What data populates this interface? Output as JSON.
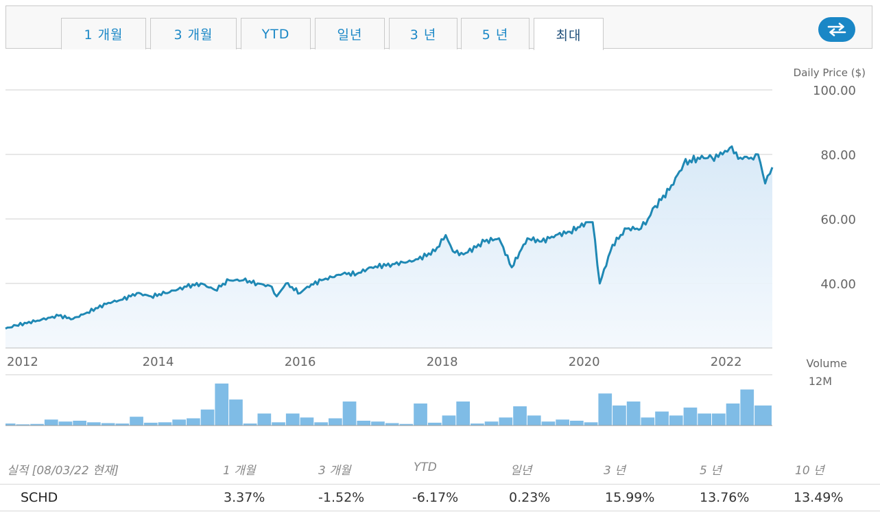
{
  "tabs": [
    {
      "label": "1 개월"
    },
    {
      "label": "3 개월"
    },
    {
      "label": "YTD"
    },
    {
      "label": "일년"
    },
    {
      "label": "3 년"
    },
    {
      "label": "5 년"
    },
    {
      "label": "최대",
      "active": true
    }
  ],
  "swap_icon": "swap-arrows-icon",
  "colors": {
    "accent": "#1a87c6",
    "line": "#1f88b4",
    "volume": "#7fbce6",
    "fill": "#dcebf8"
  },
  "chart_data": {
    "type": "line",
    "ylabel": "Daily Price ($)",
    "yticks": [
      "100.00",
      "80.00",
      "60.00",
      "40.00"
    ],
    "ylim": [
      20,
      100
    ],
    "xticks": [
      "2012",
      "2014",
      "2016",
      "2018",
      "2020",
      "2022"
    ],
    "xlim": [
      2011.85,
      2022.65
    ],
    "grid": true,
    "series": [
      {
        "x": [
          2011.85,
          2012.0,
          2012.3,
          2012.6,
          2012.8,
          2013.0,
          2013.3,
          2013.5,
          2013.7,
          2013.9,
          2014.1,
          2014.4,
          2014.6,
          2014.8,
          2015.0,
          2015.2,
          2015.4,
          2015.6,
          2015.67,
          2015.8,
          2016.0,
          2016.1,
          2016.3,
          2016.6,
          2016.8,
          2017.0,
          2017.3,
          2017.6,
          2017.9,
          2018.05,
          2018.15,
          2018.3,
          2018.6,
          2018.8,
          2018.98,
          2019.2,
          2019.4,
          2019.6,
          2019.8,
          2020.05,
          2020.12,
          2020.22,
          2020.4,
          2020.6,
          2020.8,
          2020.9,
          2021.0,
          2021.2,
          2021.4,
          2021.6,
          2021.8,
          2021.95,
          2022.05,
          2022.2,
          2022.35,
          2022.45,
          2022.55,
          2022.65
        ],
        "y": [
          26,
          27,
          28.5,
          30,
          29,
          31,
          34,
          35,
          37,
          36,
          37,
          39,
          40,
          38,
          41,
          41,
          40,
          39,
          36,
          40,
          37,
          39,
          41,
          43,
          43,
          45,
          46,
          47,
          50,
          55,
          50,
          49,
          53,
          54,
          45,
          54,
          53,
          55,
          56,
          59,
          59,
          40,
          52,
          57,
          57,
          60,
          64,
          69,
          77,
          79,
          79,
          80,
          82,
          79,
          79,
          80,
          71,
          76
        ]
      }
    ],
    "volume": {
      "label": "Volume",
      "max_label": "12M",
      "max": 12,
      "x": [
        2011.85,
        2012.0,
        2012.2,
        2012.4,
        2012.6,
        2012.8,
        2013.0,
        2013.2,
        2013.4,
        2013.6,
        2013.8,
        2014.0,
        2014.2,
        2014.4,
        2014.6,
        2014.8,
        2015.0,
        2015.2,
        2015.4,
        2015.6,
        2015.8,
        2016.0,
        2016.2,
        2016.4,
        2016.6,
        2016.8,
        2017.0,
        2017.2,
        2017.4,
        2017.6,
        2017.8,
        2018.0,
        2018.2,
        2018.4,
        2018.6,
        2018.8,
        2019.0,
        2019.2,
        2019.4,
        2019.6,
        2019.8,
        2020.0,
        2020.2,
        2020.4,
        2020.6,
        2020.8,
        2021.0,
        2021.2,
        2021.4,
        2021.6,
        2021.8,
        2022.0,
        2022.2,
        2022.4
      ],
      "values": [
        0.5,
        0.3,
        0.4,
        1.5,
        1.0,
        1.2,
        0.8,
        0.6,
        0.5,
        2.2,
        0.7,
        0.8,
        1.5,
        1.8,
        4.0,
        10.5,
        6.5,
        0.5,
        3.0,
        0.8,
        3.0,
        2.0,
        0.8,
        1.8,
        6.0,
        1.2,
        1.0,
        0.6,
        0.4,
        5.5,
        0.7,
        2.5,
        6.0,
        0.5,
        1.0,
        2.0,
        4.8,
        2.5,
        1.0,
        1.5,
        1.2,
        0.8,
        8.0,
        5.0,
        6.0,
        2.0,
        3.5,
        2.5,
        4.5,
        3.0,
        3.0,
        5.5,
        9.0,
        5.0
      ]
    }
  },
  "performance": {
    "header": {
      "label": "실적 [08/03/22 현재]",
      "cols": [
        "1 개월",
        "3 개월",
        "YTD",
        "일년",
        "3 년",
        "5 년",
        "10 년"
      ]
    },
    "row": {
      "symbol": "SCHD",
      "values": [
        "3.37%",
        "-1.52%",
        "-6.17%",
        "0.23%",
        "15.99%",
        "13.76%",
        "13.49%"
      ]
    }
  }
}
